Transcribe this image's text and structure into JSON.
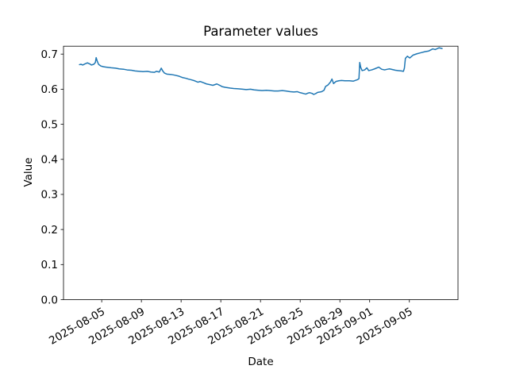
{
  "figure": {
    "title": "Parameter values",
    "xlabel": "Date",
    "ylabel": "Value"
  },
  "chart_data": {
    "type": "line",
    "title": "Parameter values",
    "xlabel": "Date",
    "ylabel": "Value",
    "grid": false,
    "legend_position": "none",
    "background_color": "#ffffff",
    "axis_color": "#000000",
    "x_unit": "days since 2025-08-01",
    "xlim": [
      0.15,
      39.9
    ],
    "ylim": [
      0.0,
      0.7226
    ],
    "x_ticks": [
      {
        "label": "2025-08-05",
        "day": 4
      },
      {
        "label": "2025-08-09",
        "day": 8
      },
      {
        "label": "2025-08-13",
        "day": 12
      },
      {
        "label": "2025-08-17",
        "day": 16
      },
      {
        "label": "2025-08-21",
        "day": 20
      },
      {
        "label": "2025-08-25",
        "day": 24
      },
      {
        "label": "2025-08-29",
        "day": 28
      },
      {
        "label": "2025-09-01",
        "day": 31
      },
      {
        "label": "2025-09-05",
        "day": 35
      }
    ],
    "x_tick_label_rotation_deg": 30,
    "y_ticks": [
      {
        "label": "0.0",
        "value": 0.0
      },
      {
        "label": "0.1",
        "value": 0.1
      },
      {
        "label": "0.2",
        "value": 0.2
      },
      {
        "label": "0.3",
        "value": 0.3
      },
      {
        "label": "0.4",
        "value": 0.4
      },
      {
        "label": "0.5",
        "value": 0.5
      },
      {
        "label": "0.6",
        "value": 0.6
      },
      {
        "label": "0.7",
        "value": 0.7
      }
    ],
    "series": [
      {
        "name": "Parameter values",
        "color": "#1f77b4",
        "line_width": 1.5,
        "points": [
          [
            1.76,
            0.67
          ],
          [
            1.9,
            0.671
          ],
          [
            2.1,
            0.669
          ],
          [
            2.3,
            0.672
          ],
          [
            2.56,
            0.675
          ],
          [
            2.8,
            0.672
          ],
          [
            2.96,
            0.669
          ],
          [
            3.2,
            0.671
          ],
          [
            3.36,
            0.676
          ],
          [
            3.44,
            0.69
          ],
          [
            3.55,
            0.68
          ],
          [
            3.68,
            0.671
          ],
          [
            3.92,
            0.666
          ],
          [
            4.2,
            0.664
          ],
          [
            4.4,
            0.663
          ],
          [
            4.7,
            0.662
          ],
          [
            4.96,
            0.661
          ],
          [
            5.4,
            0.66
          ],
          [
            5.76,
            0.658
          ],
          [
            6.2,
            0.657
          ],
          [
            6.56,
            0.655
          ],
          [
            7.0,
            0.654
          ],
          [
            7.36,
            0.652
          ],
          [
            7.8,
            0.651
          ],
          [
            8.16,
            0.65
          ],
          [
            8.6,
            0.651
          ],
          [
            8.96,
            0.649
          ],
          [
            9.3,
            0.648
          ],
          [
            9.52,
            0.651
          ],
          [
            9.8,
            0.649
          ],
          [
            10.0,
            0.66
          ],
          [
            10.15,
            0.652
          ],
          [
            10.32,
            0.646
          ],
          [
            10.56,
            0.643
          ],
          [
            11.0,
            0.642
          ],
          [
            11.36,
            0.64
          ],
          [
            11.8,
            0.637
          ],
          [
            12.16,
            0.633
          ],
          [
            12.5,
            0.631
          ],
          [
            12.72,
            0.629
          ],
          [
            13.0,
            0.627
          ],
          [
            13.36,
            0.624
          ],
          [
            13.7,
            0.62
          ],
          [
            13.92,
            0.622
          ],
          [
            14.2,
            0.619
          ],
          [
            14.56,
            0.615
          ],
          [
            14.9,
            0.613
          ],
          [
            15.2,
            0.611
          ],
          [
            15.6,
            0.615
          ],
          [
            15.9,
            0.611
          ],
          [
            16.16,
            0.607
          ],
          [
            16.5,
            0.605
          ],
          [
            16.96,
            0.603
          ],
          [
            17.3,
            0.602
          ],
          [
            17.76,
            0.601
          ],
          [
            18.2,
            0.6
          ],
          [
            18.56,
            0.599
          ],
          [
            19.0,
            0.6
          ],
          [
            19.36,
            0.598
          ],
          [
            19.8,
            0.597
          ],
          [
            20.16,
            0.596
          ],
          [
            20.6,
            0.597
          ],
          [
            20.96,
            0.596
          ],
          [
            21.4,
            0.595
          ],
          [
            21.76,
            0.595
          ],
          [
            22.2,
            0.596
          ],
          [
            22.56,
            0.595
          ],
          [
            23.0,
            0.593
          ],
          [
            23.36,
            0.592
          ],
          [
            23.7,
            0.593
          ],
          [
            24.0,
            0.59
          ],
          [
            24.3,
            0.588
          ],
          [
            24.56,
            0.586
          ],
          [
            24.8,
            0.589
          ],
          [
            24.96,
            0.59
          ],
          [
            25.2,
            0.588
          ],
          [
            25.36,
            0.585
          ],
          [
            25.6,
            0.588
          ],
          [
            25.76,
            0.591
          ],
          [
            26.0,
            0.592
          ],
          [
            26.16,
            0.593
          ],
          [
            26.4,
            0.597
          ],
          [
            26.56,
            0.608
          ],
          [
            26.8,
            0.612
          ],
          [
            27.04,
            0.62
          ],
          [
            27.2,
            0.629
          ],
          [
            27.36,
            0.616
          ],
          [
            27.6,
            0.622
          ],
          [
            27.9,
            0.624
          ],
          [
            28.16,
            0.625
          ],
          [
            28.5,
            0.624
          ],
          [
            28.96,
            0.624
          ],
          [
            29.36,
            0.623
          ],
          [
            29.76,
            0.627
          ],
          [
            29.92,
            0.63
          ],
          [
            30.0,
            0.676
          ],
          [
            30.1,
            0.662
          ],
          [
            30.24,
            0.653
          ],
          [
            30.5,
            0.655
          ],
          [
            30.72,
            0.661
          ],
          [
            30.9,
            0.653
          ],
          [
            31.2,
            0.655
          ],
          [
            31.5,
            0.658
          ],
          [
            31.92,
            0.663
          ],
          [
            32.2,
            0.657
          ],
          [
            32.5,
            0.655
          ],
          [
            32.8,
            0.657
          ],
          [
            33.0,
            0.658
          ],
          [
            33.3,
            0.656
          ],
          [
            33.6,
            0.654
          ],
          [
            33.9,
            0.653
          ],
          [
            34.2,
            0.652
          ],
          [
            34.4,
            0.651
          ],
          [
            34.5,
            0.66
          ],
          [
            34.6,
            0.688
          ],
          [
            34.8,
            0.694
          ],
          [
            35.04,
            0.689
          ],
          [
            35.36,
            0.697
          ],
          [
            35.76,
            0.701
          ],
          [
            36.16,
            0.704
          ],
          [
            36.56,
            0.707
          ],
          [
            36.96,
            0.709
          ],
          [
            37.36,
            0.715
          ],
          [
            37.6,
            0.713
          ],
          [
            38.0,
            0.718
          ],
          [
            38.3,
            0.716
          ]
        ]
      }
    ]
  }
}
